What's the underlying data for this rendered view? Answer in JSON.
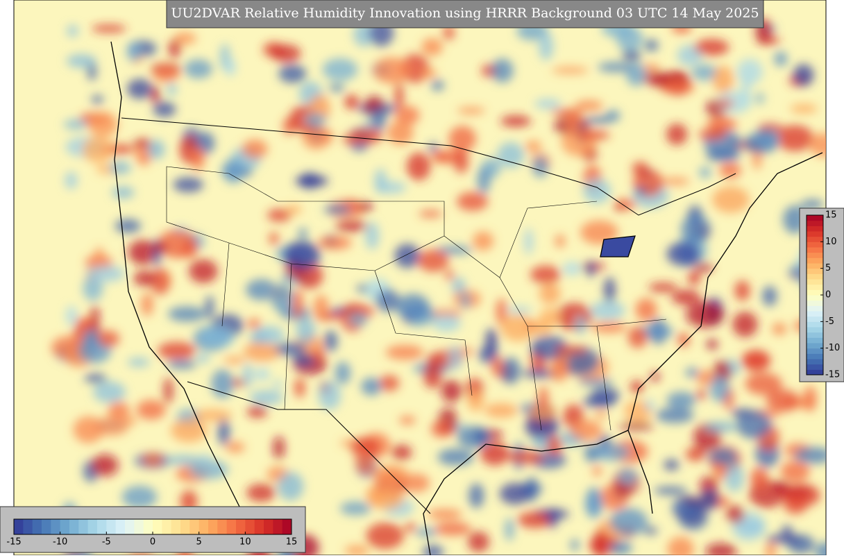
{
  "title": "UU2DVAR Relative Humidity Innovation using HRRR Background 03 UTC 14 May 2025",
  "colormap": [
    "#313695",
    "#4575b4",
    "#74add1",
    "#abd9e9",
    "#e0f3f8",
    "#ffffbf",
    "#fee090",
    "#fdae61",
    "#f46d43",
    "#d73027",
    "#a50026"
  ],
  "colorbar_bottom": {
    "range": [
      -15,
      15
    ],
    "ticks": [
      -15,
      -10,
      -5,
      0,
      5,
      10,
      15
    ]
  },
  "colorbar_right": {
    "range": [
      -15,
      15
    ],
    "ticks": [
      -15,
      -10,
      -5,
      0,
      5,
      10,
      15
    ]
  }
}
